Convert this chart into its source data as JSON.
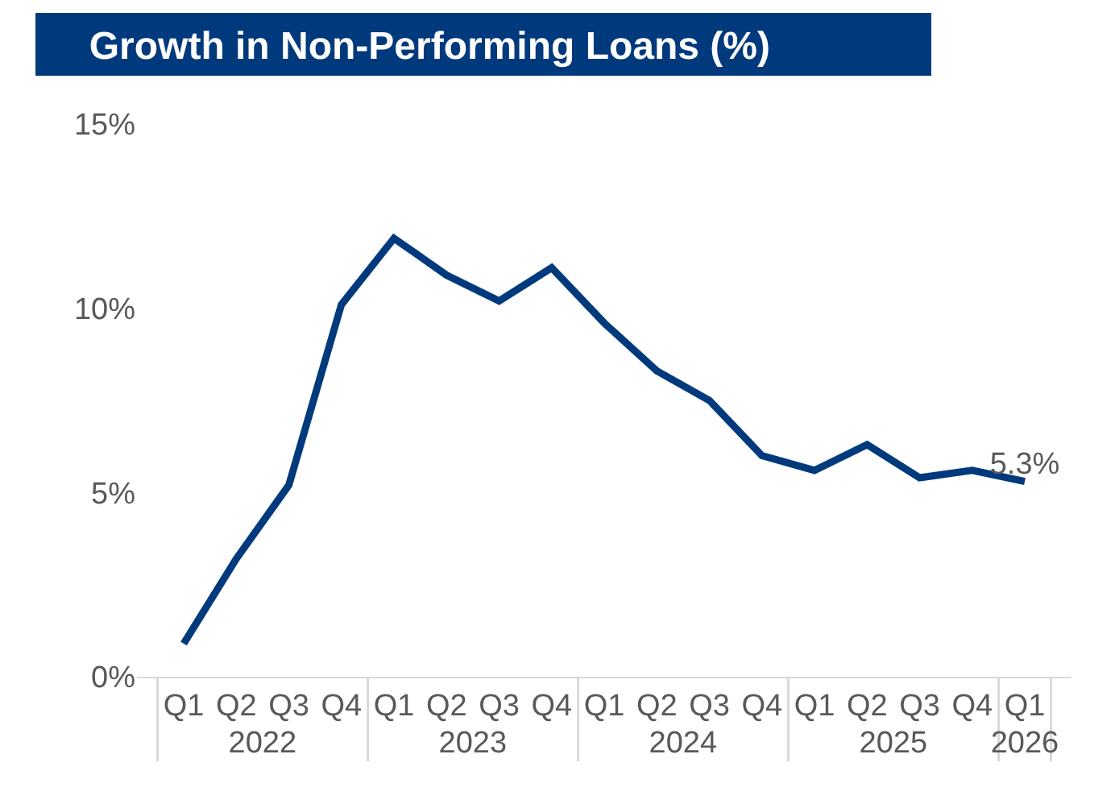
{
  "chart_data": {
    "type": "line",
    "title": "Growth in Non-Performing Loans (%)",
    "categories": [
      "Q1",
      "Q2",
      "Q3",
      "Q4",
      "Q1",
      "Q2",
      "Q3",
      "Q4",
      "Q1",
      "Q2",
      "Q3",
      "Q4",
      "Q1",
      "Q2",
      "Q3",
      "Q4",
      "Q1"
    ],
    "annotations": [
      "2022",
      "2023",
      "2024",
      "2025",
      "2026"
    ],
    "series": [
      {
        "color": "#003a7d",
        "values": [
          0.9,
          3.2,
          5.2,
          10.1,
          11.9,
          10.9,
          10.2,
          11.1,
          9.6,
          8.3,
          7.5,
          6.0,
          5.6,
          6.3,
          5.4,
          5.6,
          5.3
        ],
        "value_labels": [
          null,
          null,
          null,
          null,
          null,
          null,
          null,
          null,
          null,
          null,
          null,
          null,
          null,
          null,
          null,
          null,
          "5.3%"
        ]
      }
    ],
    "ylim": [
      0,
      15
    ],
    "yticks": [
      {
        "value": 0,
        "label": "0%"
      },
      {
        "value": 5,
        "label": "5%"
      },
      {
        "value": 10,
        "label": "10%"
      },
      {
        "value": 15,
        "label": "15%"
      }
    ],
    "grid": false,
    "marker": "none",
    "line_style": "solid"
  }
}
